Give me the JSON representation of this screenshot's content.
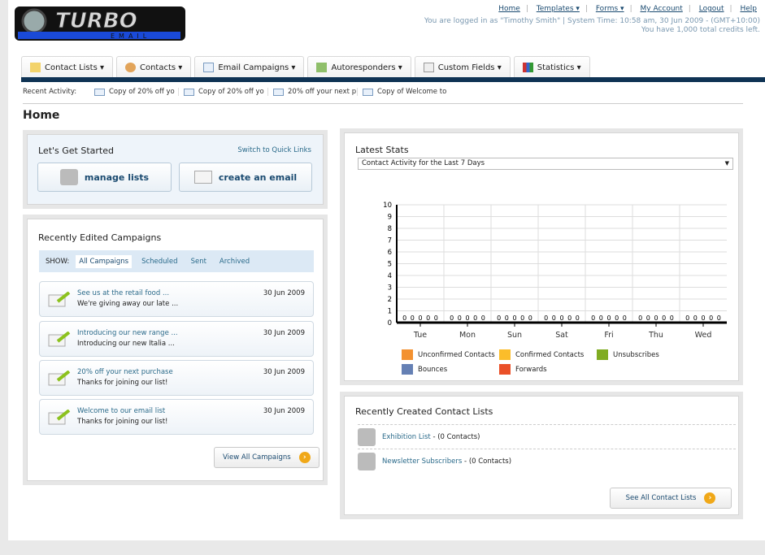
{
  "logo": {
    "text": "TURBO",
    "sub": "EMAIL"
  },
  "toplinks": [
    "Home",
    "Templates ▾",
    "Forms ▾",
    "My Account",
    "Logout",
    "Help"
  ],
  "info": {
    "line1": "You are logged in as \"Timothy Smith\" | System Time: 10:58 am, 30 Jun 2009 - (GMT+10:00)",
    "line2": "You have 1,000 total credits left."
  },
  "nav": [
    "Contact Lists ▾",
    "Contacts ▾",
    "Email Campaigns ▾",
    "Autoresponders ▾",
    "Custom Fields ▾",
    "Statistics ▾"
  ],
  "recent": {
    "label": "Recent Activity:",
    "items": [
      "Copy of 20% off yo",
      "Copy of 20% off yo",
      "20% off your next p",
      "Copy of Welcome to"
    ]
  },
  "page_title": "Home",
  "get_started": {
    "title": "Let's Get Started",
    "switch": "Switch to Quick Links",
    "manage": "manage lists",
    "create": "create an email"
  },
  "campaigns": {
    "title": "Recently Edited Campaigns",
    "show_label": "SHOW:",
    "filters": [
      "All Campaigns",
      "Scheduled",
      "Sent",
      "Archived"
    ],
    "items": [
      {
        "title": "See us at the retail food ...",
        "sub": "We're giving away our late ...",
        "date": "30 Jun 2009"
      },
      {
        "title": "Introducing our new range ...",
        "sub": "Introducing our new Italia ...",
        "date": "30 Jun 2009"
      },
      {
        "title": "20% off your next purchase",
        "sub": "Thanks for joining our list!",
        "date": "30 Jun 2009"
      },
      {
        "title": "Welcome to our email list",
        "sub": "Thanks for joining our list!",
        "date": "30 Jun 2009"
      }
    ],
    "view_all": "View All Campaigns"
  },
  "stats": {
    "title": "Latest Stats",
    "select": "Contact Activity for the Last 7 Days"
  },
  "chart_data": {
    "type": "bar",
    "categories": [
      "Tue",
      "Mon",
      "Sun",
      "Sat",
      "Fri",
      "Thu",
      "Wed"
    ],
    "ylim": [
      0,
      10
    ],
    "yticks": [
      0,
      1,
      2,
      3,
      4,
      5,
      6,
      7,
      8,
      9,
      10
    ],
    "grid": true,
    "legend": "bottom",
    "series": [
      {
        "name": "Unconfirmed Contacts",
        "color": "#f39130",
        "values": [
          0,
          0,
          0,
          0,
          0,
          0,
          0
        ]
      },
      {
        "name": "Confirmed Contacts",
        "color": "#fbbd2a",
        "values": [
          0,
          0,
          0,
          0,
          0,
          0,
          0
        ]
      },
      {
        "name": "Unsubscribes",
        "color": "#80ac22",
        "values": [
          0,
          0,
          0,
          0,
          0,
          0,
          0
        ]
      },
      {
        "name": "Bounces",
        "color": "#6580b4",
        "values": [
          0,
          0,
          0,
          0,
          0,
          0,
          0
        ]
      },
      {
        "name": "Forwards",
        "color": "#ea5028",
        "values": [
          0,
          0,
          0,
          0,
          0,
          0,
          0
        ]
      }
    ]
  },
  "lists": {
    "title": "Recently Created Contact Lists",
    "items": [
      {
        "name": "Exhibition List",
        "count": " - (0 Contacts)"
      },
      {
        "name": "Newsletter Subscribers",
        "count": " - (0 Contacts)"
      }
    ],
    "see_all": "See All Contact Lists"
  }
}
